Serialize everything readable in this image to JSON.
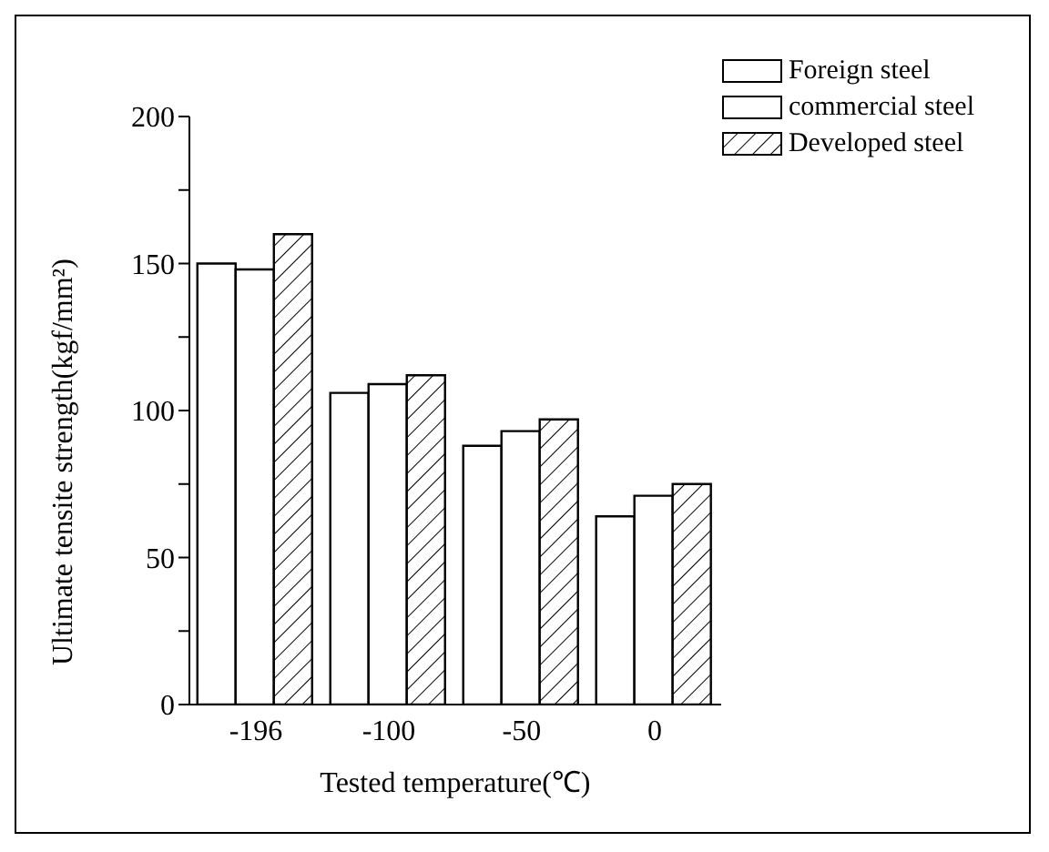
{
  "chart_data": {
    "type": "bar",
    "xlabel": "Tested temperature(℃)",
    "ylabel": "Ultimate tensite strength(kgf/mm²)",
    "categories": [
      "-196",
      "-100",
      "-50",
      "0"
    ],
    "series": [
      {
        "name": "Foreign steel",
        "color": "#ffffff",
        "values": [
          150,
          106,
          88,
          64
        ]
      },
      {
        "name": "commercial steel",
        "color": "#ffffff",
        "values": [
          148,
          109,
          93,
          71
        ]
      },
      {
        "name": "Developed steel",
        "color": "#000000",
        "values": [
          160,
          112,
          97,
          75
        ]
      }
    ],
    "ylim": [
      0,
      200
    ],
    "yticks": [
      0,
      {
        "value": 25,
        "label": null
      },
      50,
      {
        "value": 75,
        "label": null
      },
      100,
      {
        "value": 125,
        "label": null
      },
      150,
      {
        "value": 175,
        "label": null
      },
      200
    ],
    "grid": false,
    "legend": "top right"
  }
}
